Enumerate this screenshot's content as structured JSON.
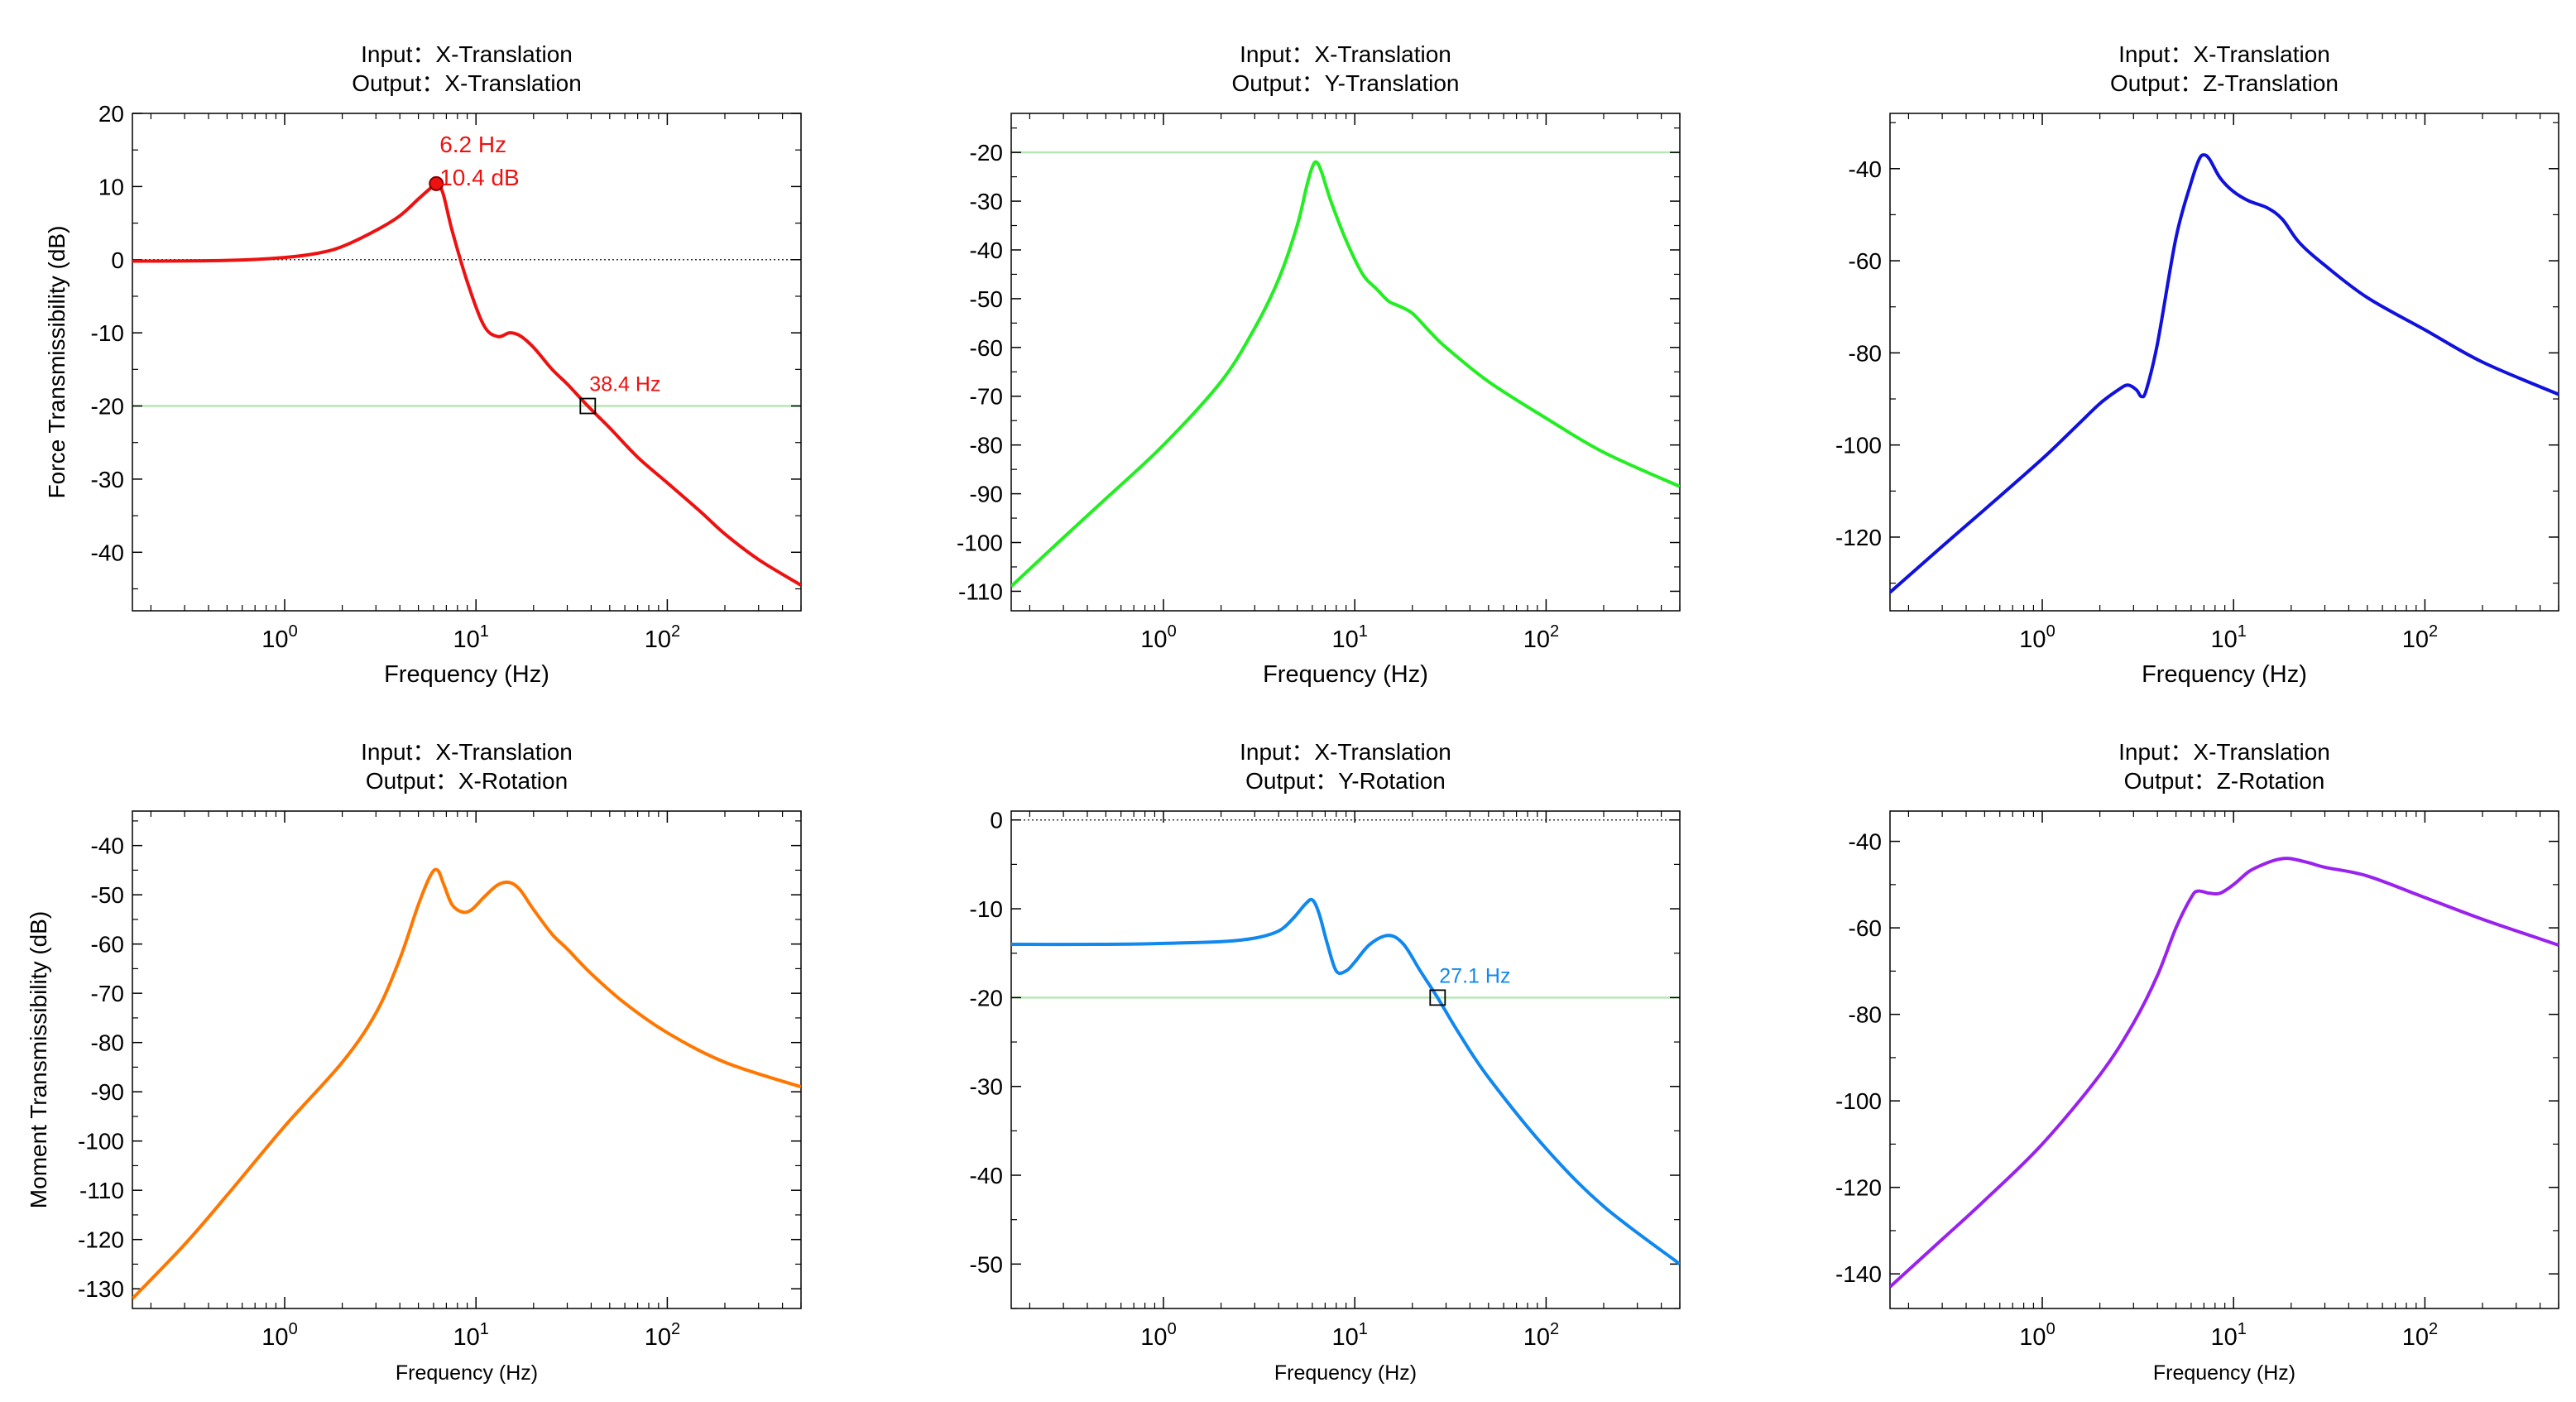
{
  "chart_data": [
    {
      "type": "line",
      "title": [
        "Input：X-Translation",
        "Output：X-Translation"
      ],
      "xlabel": "Frequency (Hz)",
      "ylabel": "Force Transmissibility  (dB)",
      "xscale": "log",
      "xlim": [
        0.16,
        500
      ],
      "ylim": [
        -48,
        20
      ],
      "yticks": [
        20,
        10,
        0,
        -10,
        -20,
        -30,
        -40
      ],
      "color": "#ee1111",
      "ref_lines": [
        {
          "y": -20,
          "style": "green"
        },
        {
          "y": 0,
          "style": "dotted"
        }
      ],
      "series": [
        {
          "name": "X-Translation",
          "x": [
            0.16,
            0.5,
            1,
            1.5,
            2,
            3,
            4,
            5,
            5.8,
            6.2,
            6.7,
            7.5,
            9,
            11,
            13,
            15,
            17,
            20,
            25,
            30,
            38.4,
            50,
            70,
            100,
            150,
            200,
            300,
            500
          ],
          "y": [
            -0.2,
            -0.1,
            0.3,
            0.9,
            1.8,
            4,
            6,
            8.3,
            9.8,
            10.4,
            9.2,
            4,
            -3,
            -9,
            -10.5,
            -10,
            -10.4,
            -12,
            -15,
            -17,
            -20,
            -23,
            -27,
            -30.5,
            -34.5,
            -37.5,
            -41,
            -44.5
          ]
        }
      ],
      "markers": [
        {
          "x": 6.2,
          "y": 10.4,
          "shape": "dot",
          "label1": "6.2 Hz",
          "label2": "10.4 dB"
        },
        {
          "x": 38.4,
          "y": -20,
          "shape": "square",
          "label1": "38.4 Hz"
        }
      ]
    },
    {
      "type": "line",
      "title": [
        "Input：X-Translation",
        "Output：Y-Translation"
      ],
      "xlabel": "Frequency (Hz)",
      "ylabel": "",
      "xscale": "log",
      "xlim": [
        0.16,
        500
      ],
      "ylim": [
        -114,
        -12
      ],
      "yticks": [
        -20,
        -30,
        -40,
        -50,
        -60,
        -70,
        -80,
        -90,
        -100,
        -110
      ],
      "color": "#22ee22",
      "ref_lines": [
        {
          "y": -20,
          "style": "green"
        }
      ],
      "series": [
        {
          "name": "Y-Translation",
          "x": [
            0.16,
            0.3,
            0.5,
            1,
            2,
            3,
            4,
            5,
            5.6,
            6,
            6.3,
            6.7,
            7.5,
            9,
            11,
            13,
            15,
            17,
            20,
            25,
            30,
            50,
            100,
            200,
            500
          ],
          "y": [
            -109,
            -99,
            -91,
            -80,
            -67,
            -56,
            -46,
            -35,
            -27,
            -23,
            -22,
            -24,
            -30,
            -38,
            -45,
            -48,
            -50.5,
            -51.5,
            -53,
            -57,
            -60,
            -67,
            -74.5,
            -81.5,
            -88.5
          ]
        }
      ],
      "markers": []
    },
    {
      "type": "line",
      "title": [
        "Input：X-Translation",
        "Output：Z-Translation"
      ],
      "xlabel": "Frequency (Hz)",
      "ylabel": "",
      "xscale": "log",
      "xlim": [
        0.16,
        500
      ],
      "ylim": [
        -136,
        -28
      ],
      "yticks": [
        -40,
        -60,
        -80,
        -100,
        -120
      ],
      "color": "#1111dd",
      "ref_lines": [],
      "series": [
        {
          "name": "Z-Translation",
          "x": [
            0.16,
            0.3,
            0.5,
            1,
            1.5,
            2,
            2.5,
            2.8,
            3.1,
            3.3,
            3.5,
            4,
            5,
            6,
            6.6,
            7,
            7.5,
            8.5,
            10,
            12,
            15,
            18,
            22,
            30,
            50,
            100,
            200,
            500
          ],
          "y": [
            -132,
            -122,
            -114,
            -103,
            -96,
            -91,
            -88,
            -87,
            -88,
            -89.5,
            -88,
            -78,
            -55,
            -43,
            -38,
            -37,
            -38,
            -42,
            -45,
            -47,
            -48.5,
            -51,
            -56,
            -61,
            -68,
            -75,
            -82,
            -89
          ]
        }
      ],
      "markers": []
    },
    {
      "type": "line",
      "title": [
        "Input：X-Translation",
        "Output：X-Rotation"
      ],
      "xlabel": "Frequency (Hz)",
      "ylabel": "Moment Transmissibility  (dB)",
      "xscale": "log",
      "xlim": [
        0.16,
        500
      ],
      "ylim": [
        -134,
        -33
      ],
      "yticks": [
        -40,
        -50,
        -60,
        -70,
        -80,
        -90,
        -100,
        -110,
        -120,
        -130
      ],
      "color": "#ff7700",
      "ref_lines": [],
      "series": [
        {
          "name": "X-Rotation",
          "x": [
            0.16,
            0.3,
            0.5,
            1,
            2,
            3,
            4,
            5,
            5.8,
            6.3,
            6.8,
            7.5,
            8.5,
            9.5,
            11,
            13,
            15,
            17,
            20,
            25,
            30,
            40,
            60,
            100,
            200,
            500
          ],
          "y": [
            -132,
            -121,
            -111,
            -97,
            -84,
            -74,
            -63,
            -52,
            -46,
            -45,
            -48,
            -52,
            -53.5,
            -53,
            -50.5,
            -48,
            -47.5,
            -49,
            -53,
            -58,
            -61,
            -66,
            -72,
            -78,
            -84,
            -89
          ]
        }
      ],
      "markers": []
    },
    {
      "type": "line",
      "title": [
        "Input：X-Translation",
        "Output：Y-Rotation"
      ],
      "xlabel": "Frequency (Hz)",
      "ylabel": "",
      "xscale": "log",
      "xlim": [
        0.16,
        500
      ],
      "ylim": [
        -55,
        1
      ],
      "yticks": [
        0,
        -10,
        -20,
        -30,
        -40,
        -50
      ],
      "color": "#1188ee",
      "ref_lines": [
        {
          "y": -20,
          "style": "green"
        },
        {
          "y": 0,
          "style": "dotted"
        }
      ],
      "series": [
        {
          "name": "Y-Rotation",
          "x": [
            0.16,
            0.5,
            1,
            2,
            3,
            4,
            4.8,
            5.5,
            6,
            6.5,
            7.2,
            8,
            9,
            10,
            12,
            15,
            18,
            22,
            27.1,
            35,
            50,
            100,
            200,
            500
          ],
          "y": [
            -14,
            -14,
            -13.9,
            -13.7,
            -13.3,
            -12.5,
            -11,
            -9.5,
            -9,
            -10.5,
            -14,
            -17,
            -17,
            -16,
            -14,
            -13,
            -14,
            -17,
            -20,
            -24,
            -29,
            -37,
            -43.5,
            -50
          ]
        }
      ],
      "markers": [
        {
          "x": 27.1,
          "y": -20,
          "shape": "square",
          "label1": "27.1 Hz"
        }
      ]
    },
    {
      "type": "line",
      "title": [
        "Input：X-Translation",
        "Output：Z-Rotation"
      ],
      "xlabel": "Frequency (Hz)",
      "ylabel": "",
      "xscale": "log",
      "xlim": [
        0.16,
        500
      ],
      "ylim": [
        -148,
        -33
      ],
      "yticks": [
        -40,
        -60,
        -80,
        -100,
        -120,
        -140
      ],
      "color": "#9922ee",
      "ref_lines": [],
      "series": [
        {
          "name": "Z-Rotation",
          "x": [
            0.16,
            0.3,
            0.5,
            1,
            2,
            3,
            4,
            5,
            6,
            6.5,
            7.5,
            8.5,
            10,
            12,
            14,
            16,
            18,
            20,
            25,
            30,
            50,
            100,
            200,
            500
          ],
          "y": [
            -143,
            -132,
            -123,
            -110,
            -94,
            -82,
            -71,
            -60,
            -53,
            -51.5,
            -52,
            -52,
            -50,
            -47,
            -45.5,
            -44.5,
            -44,
            -44,
            -45,
            -46,
            -48,
            -53,
            -58,
            -64
          ]
        }
      ],
      "markers": []
    }
  ]
}
